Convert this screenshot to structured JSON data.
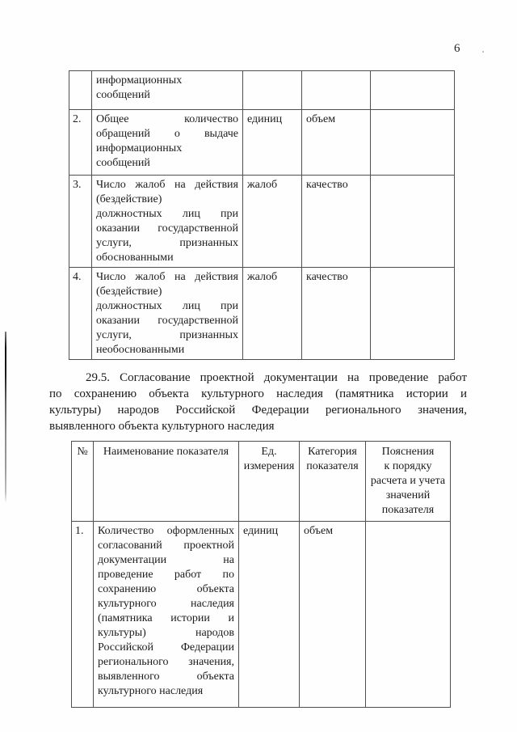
{
  "page": {
    "number": "6"
  },
  "table1": {
    "rows": [
      {
        "num": "",
        "name_lines": [
          "информационных",
          "сообщений"
        ],
        "unit": "",
        "category": "",
        "note": ""
      },
      {
        "num": "2.",
        "name_lines": [
          "Общее количество",
          "обращений о выдаче",
          "информационных",
          "сообщений"
        ],
        "unit": "единиц",
        "category": "объем",
        "note": ""
      },
      {
        "num": "3.",
        "name_lines": [
          "Число жалоб на действия",
          "(бездействие)",
          "должностных лиц при",
          "оказании государственной",
          "услуги, признанных",
          "обоснованными"
        ],
        "unit": "жалоб",
        "category": "качество",
        "note": ""
      },
      {
        "num": "4.",
        "name_lines": [
          "Число жалоб на действия",
          "(бездействие)",
          "должностных лиц при",
          "оказании государственной",
          "услуги, признанных",
          "необоснованными"
        ],
        "unit": "жалоб",
        "category": "качество",
        "note": ""
      }
    ]
  },
  "paragraph": {
    "lines": [
      "29.5. Согласование проектной документации на проведение работ",
      "по сохранению объекта культурного наследия (памятника истории и",
      "культуры) народов Российской Федерации регионального значения,",
      "выявленного объекта культурного наследия"
    ]
  },
  "table2": {
    "headers": {
      "num": "№",
      "name": "Наименование показателя",
      "unit_lines": [
        "Ед.",
        "измерения"
      ],
      "category_lines": [
        "Категория",
        "показателя"
      ],
      "note_lines": [
        "Пояснения",
        "к порядку",
        "расчета и учета",
        "значений",
        "показателя"
      ]
    },
    "rows": [
      {
        "num": "1.",
        "name_lines": [
          "Количество оформленных",
          "согласований проектной",
          "документации на",
          "проведение работ по",
          "сохранению объекта",
          "культурного наследия",
          "(памятника истории и",
          "культуры) народов",
          "Российской Федерации",
          "регионального значения,",
          "выявленного объекта",
          "культурного наследия"
        ],
        "unit": "единиц",
        "category": "объем",
        "note": ""
      }
    ]
  }
}
